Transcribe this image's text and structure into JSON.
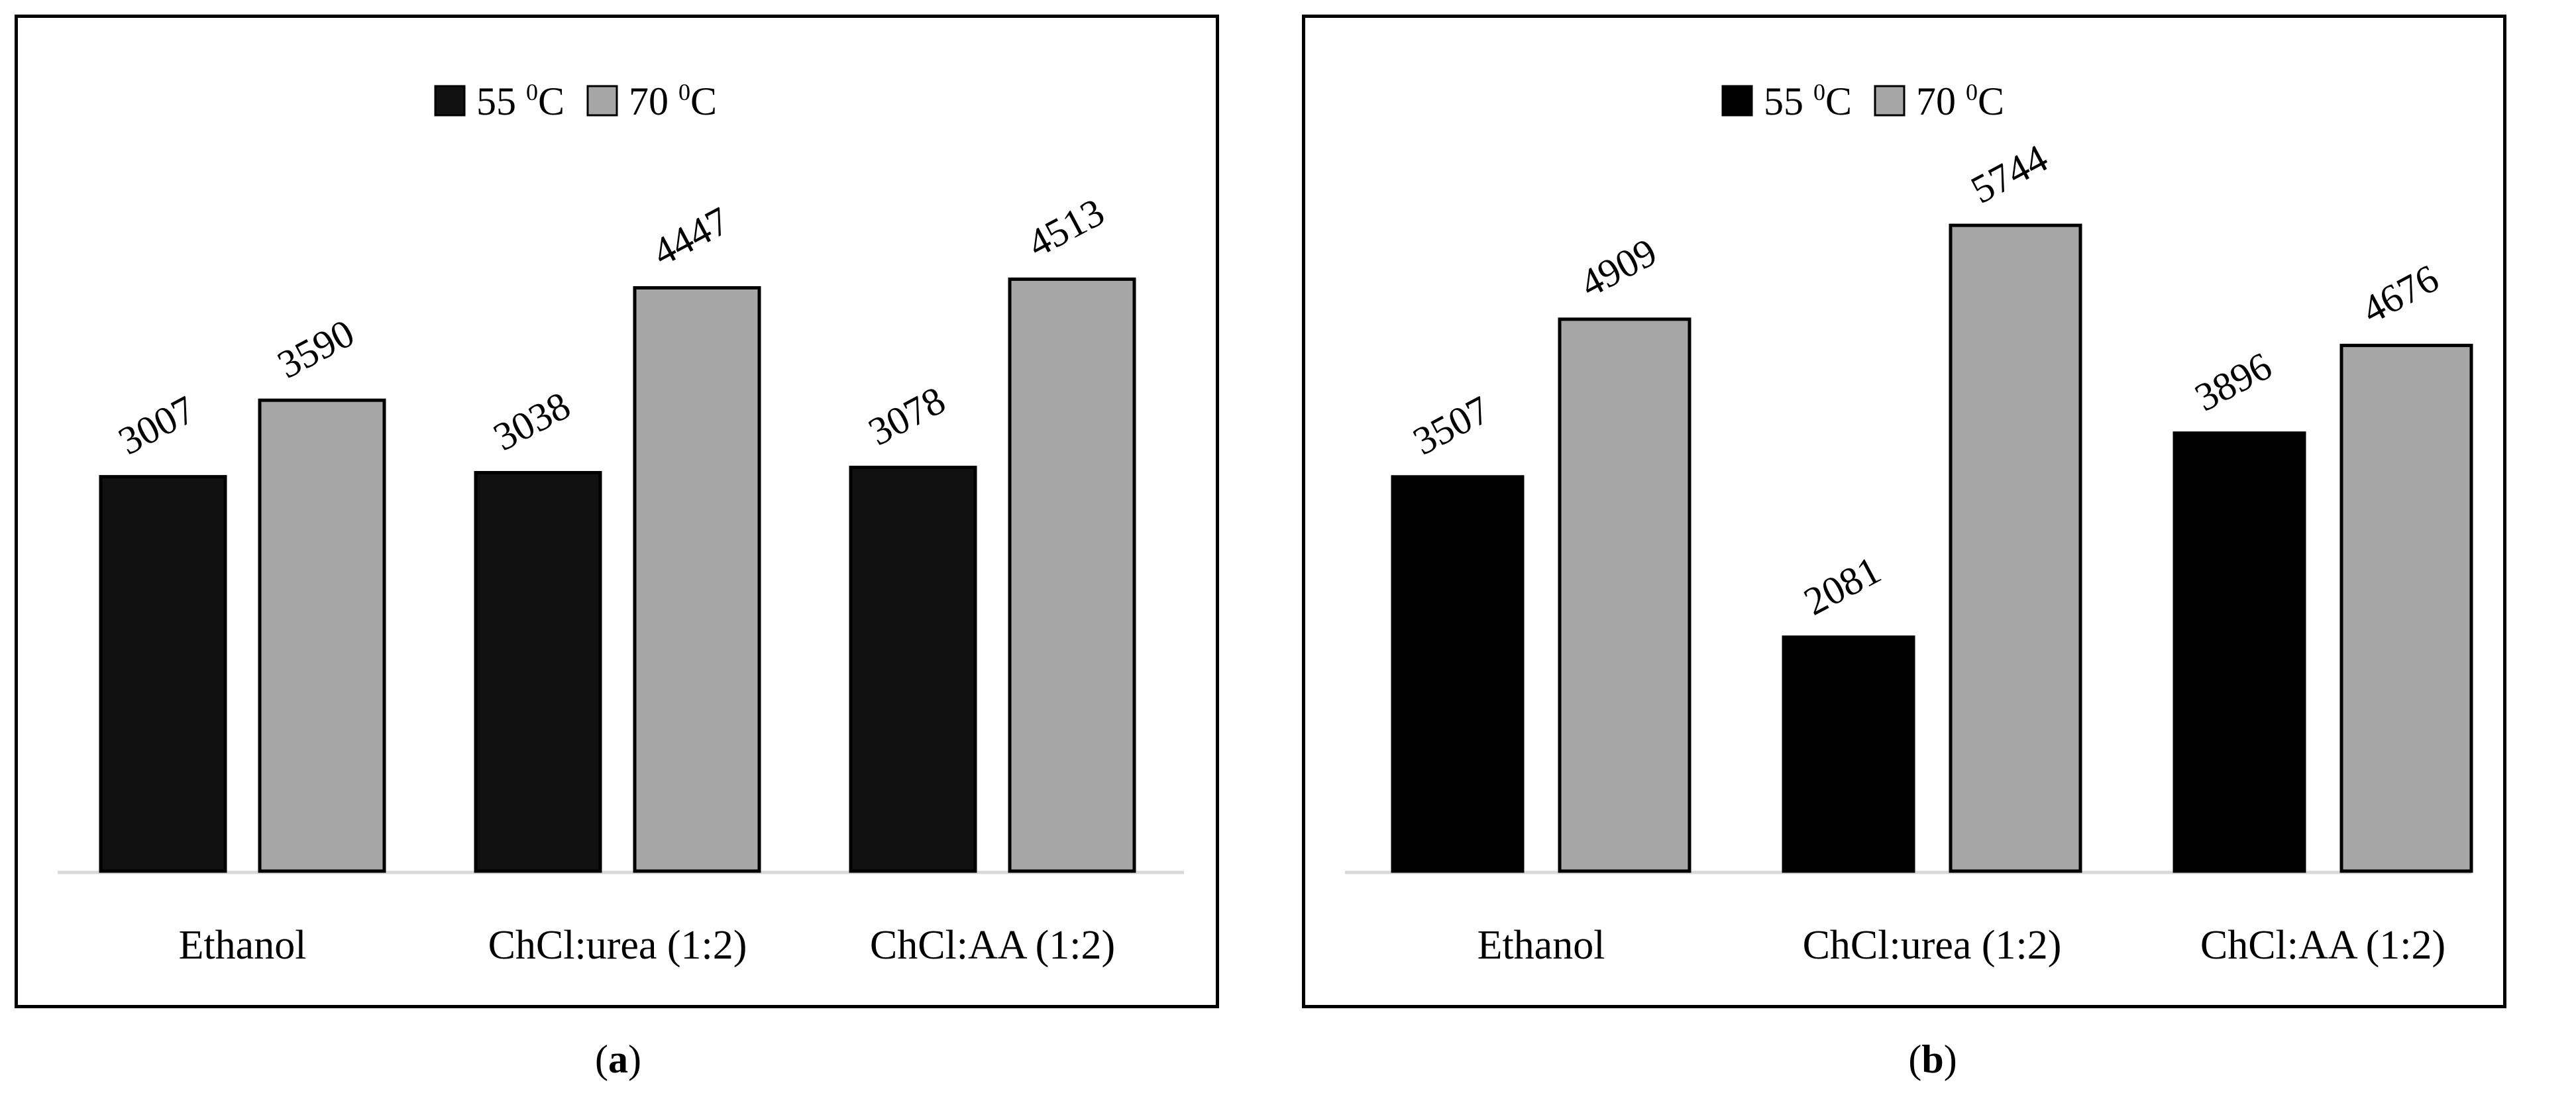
{
  "chart_data": [
    {
      "panel": "a",
      "type": "bar",
      "categories": [
        "Ethanol",
        "ChCl:urea (1:2)",
        "ChCl:AA (1:2)"
      ],
      "series": [
        {
          "name": "55 °C",
          "legend_main": "55 ",
          "legend_sup": "0",
          "legend_unit": "C",
          "values": [
            3007,
            3038,
            3078
          ],
          "color": "#111111"
        },
        {
          "name": "70 °C",
          "legend_main": "70 ",
          "legend_sup": "0",
          "legend_unit": "C",
          "values": [
            3590,
            4447,
            4513
          ],
          "color": "#a6a6a6"
        }
      ],
      "ylim": [
        0,
        6000
      ],
      "legend_position": "top-center",
      "data_labels": true,
      "grid": false
    },
    {
      "panel": "b",
      "type": "bar",
      "categories": [
        "Ethanol",
        "ChCl:urea (1:2)",
        "ChCl:AA (1:2)"
      ],
      "series": [
        {
          "name": "55 °C",
          "legend_main": "55 ",
          "legend_sup": "0",
          "legend_unit": "C",
          "values": [
            3507,
            2081,
            3896
          ],
          "color": "#000000"
        },
        {
          "name": "70 °C",
          "legend_main": "70 ",
          "legend_sup": "0",
          "legend_unit": "C",
          "values": [
            4909,
            5744,
            4676
          ],
          "color": "#a6a6a6"
        }
      ],
      "ylim": [
        0,
        7000
      ],
      "legend_position": "top-center",
      "data_labels": true,
      "grid": false
    }
  ],
  "captions": [
    {
      "open": "(",
      "letter": "a",
      "close": ")"
    },
    {
      "open": "(",
      "letter": "b",
      "close": ")"
    }
  ]
}
